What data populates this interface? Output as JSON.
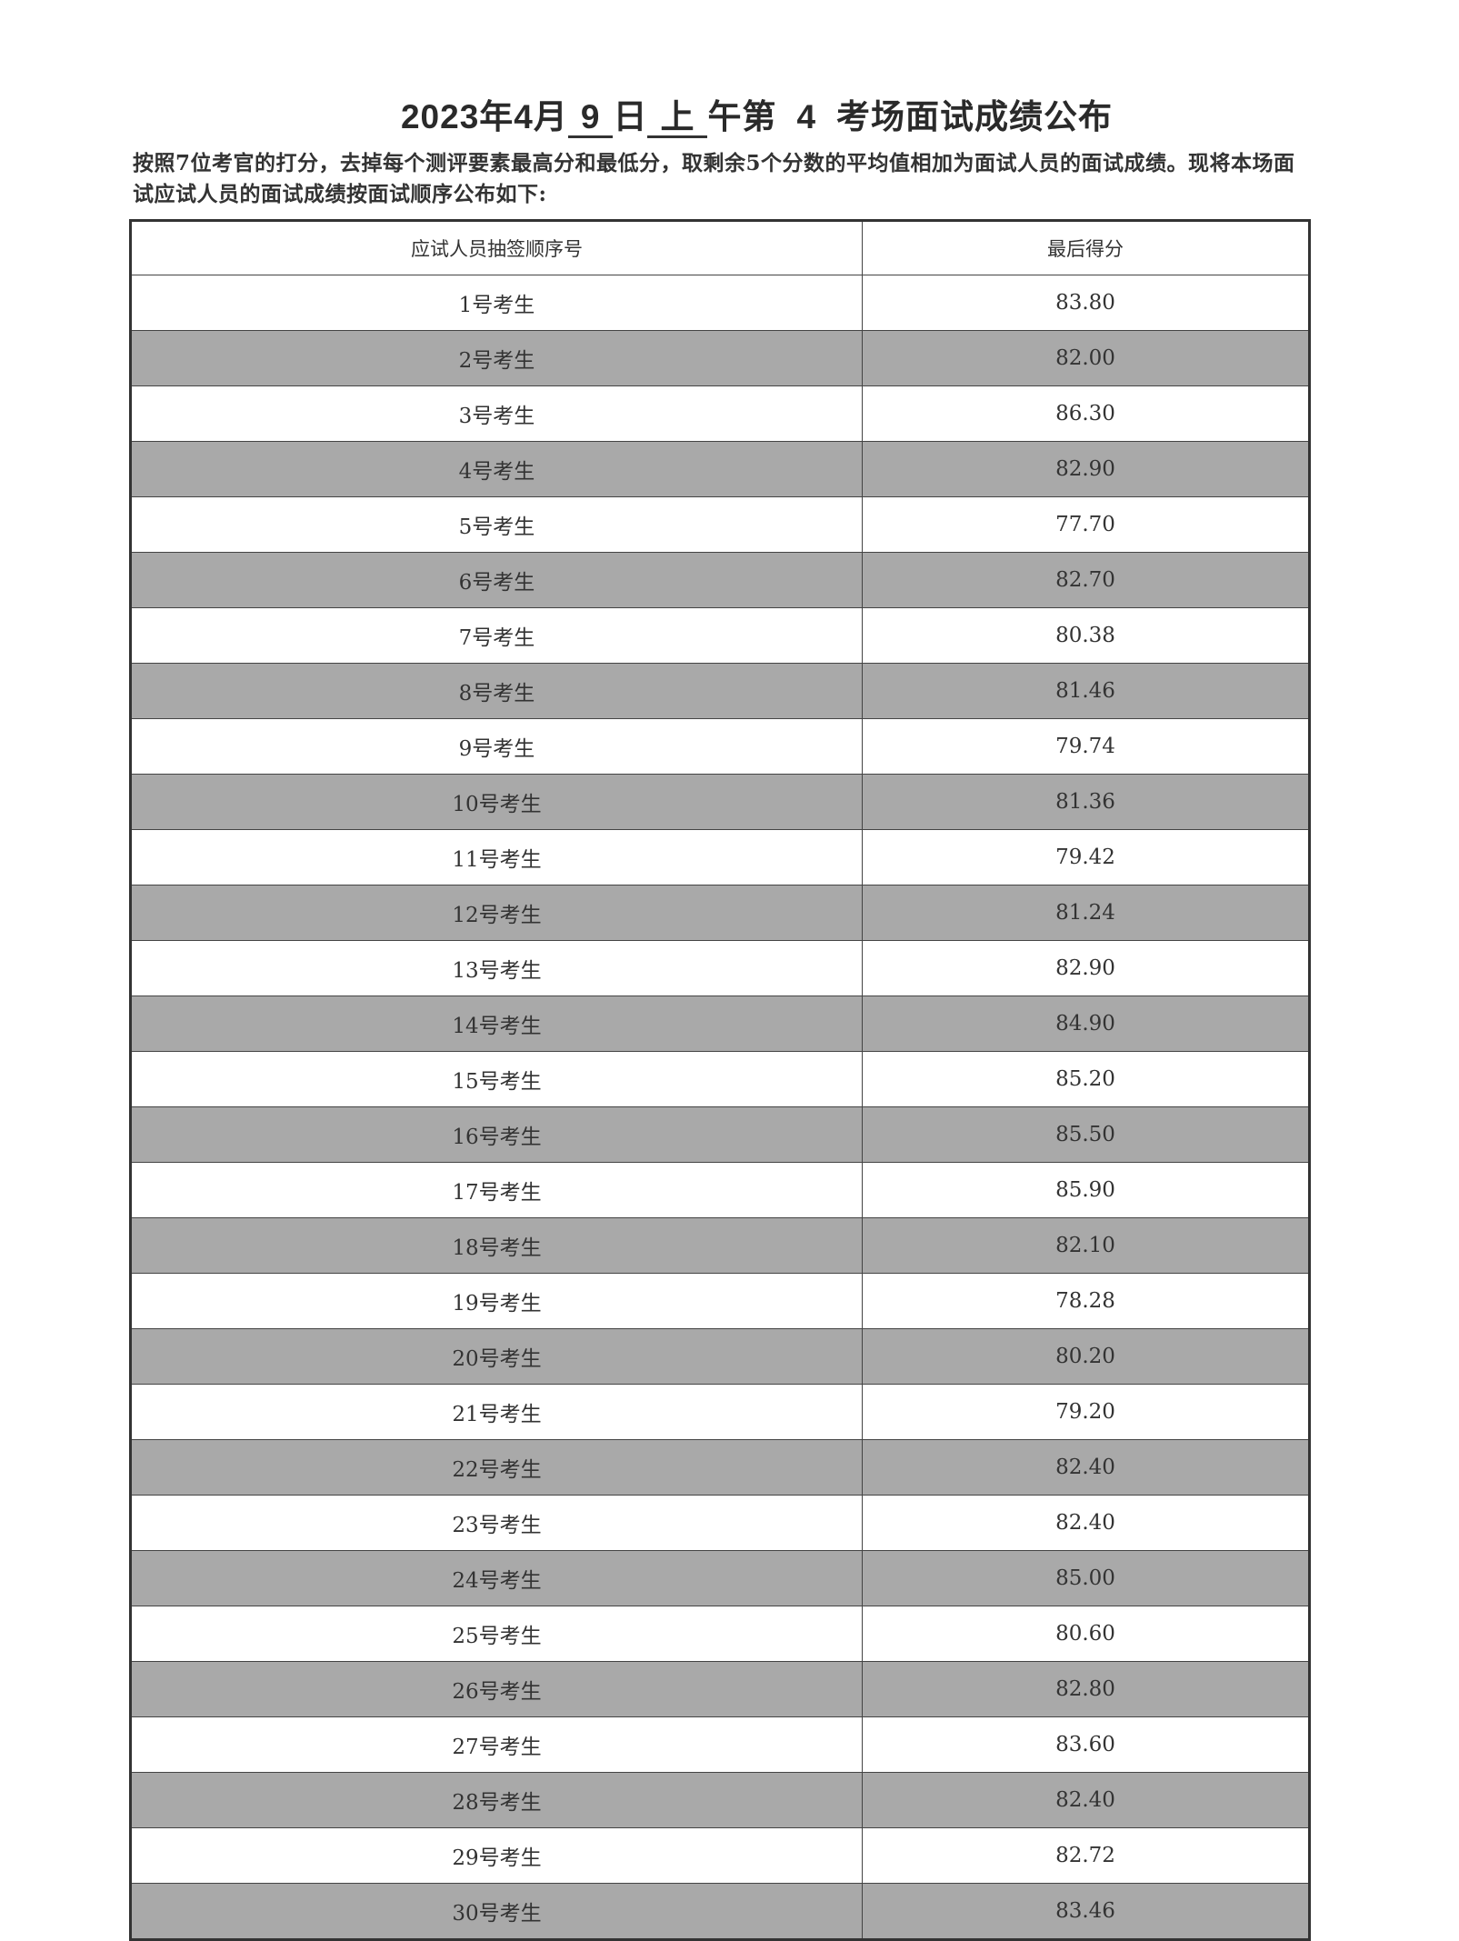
{
  "title": {
    "prefix": "2023年4月",
    "day": "9",
    "day_suffix": "日",
    "period": "上",
    "period_suffix": "午第",
    "room": "4",
    "suffix": "考场面试成绩公布"
  },
  "intro": "按照7位考官的打分，去掉每个测评要素最高分和最低分，取剩余5个分数的平均值相加为面试人员的面试成绩。现将本场面试应试人员的面试成绩按面试顺序公布如下:",
  "table": {
    "headers": [
      "应试人员抽签顺序号",
      "最后得分"
    ],
    "rows": [
      [
        "1号考生",
        "83.80"
      ],
      [
        "2号考生",
        "82.00"
      ],
      [
        "3号考生",
        "86.30"
      ],
      [
        "4号考生",
        "82.90"
      ],
      [
        "5号考生",
        "77.70"
      ],
      [
        "6号考生",
        "82.70"
      ],
      [
        "7号考生",
        "80.38"
      ],
      [
        "8号考生",
        "81.46"
      ],
      [
        "9号考生",
        "79.74"
      ],
      [
        "10号考生",
        "81.36"
      ],
      [
        "11号考生",
        "79.42"
      ],
      [
        "12号考生",
        "81.24"
      ],
      [
        "13号考生",
        "82.90"
      ],
      [
        "14号考生",
        "84.90"
      ],
      [
        "15号考生",
        "85.20"
      ],
      [
        "16号考生",
        "85.50"
      ],
      [
        "17号考生",
        "85.90"
      ],
      [
        "18号考生",
        "82.10"
      ],
      [
        "19号考生",
        "78.28"
      ],
      [
        "20号考生",
        "80.20"
      ],
      [
        "21号考生",
        "79.20"
      ],
      [
        "22号考生",
        "82.40"
      ],
      [
        "23号考生",
        "82.40"
      ],
      [
        "24号考生",
        "85.00"
      ],
      [
        "25号考生",
        "80.60"
      ],
      [
        "26号考生",
        "82.80"
      ],
      [
        "27号考生",
        "83.60"
      ],
      [
        "28号考生",
        "82.40"
      ],
      [
        "29号考生",
        "82.72"
      ],
      [
        "30号考生",
        "83.46"
      ]
    ]
  },
  "colors": {
    "shaded_row": "#a9a9a9"
  }
}
